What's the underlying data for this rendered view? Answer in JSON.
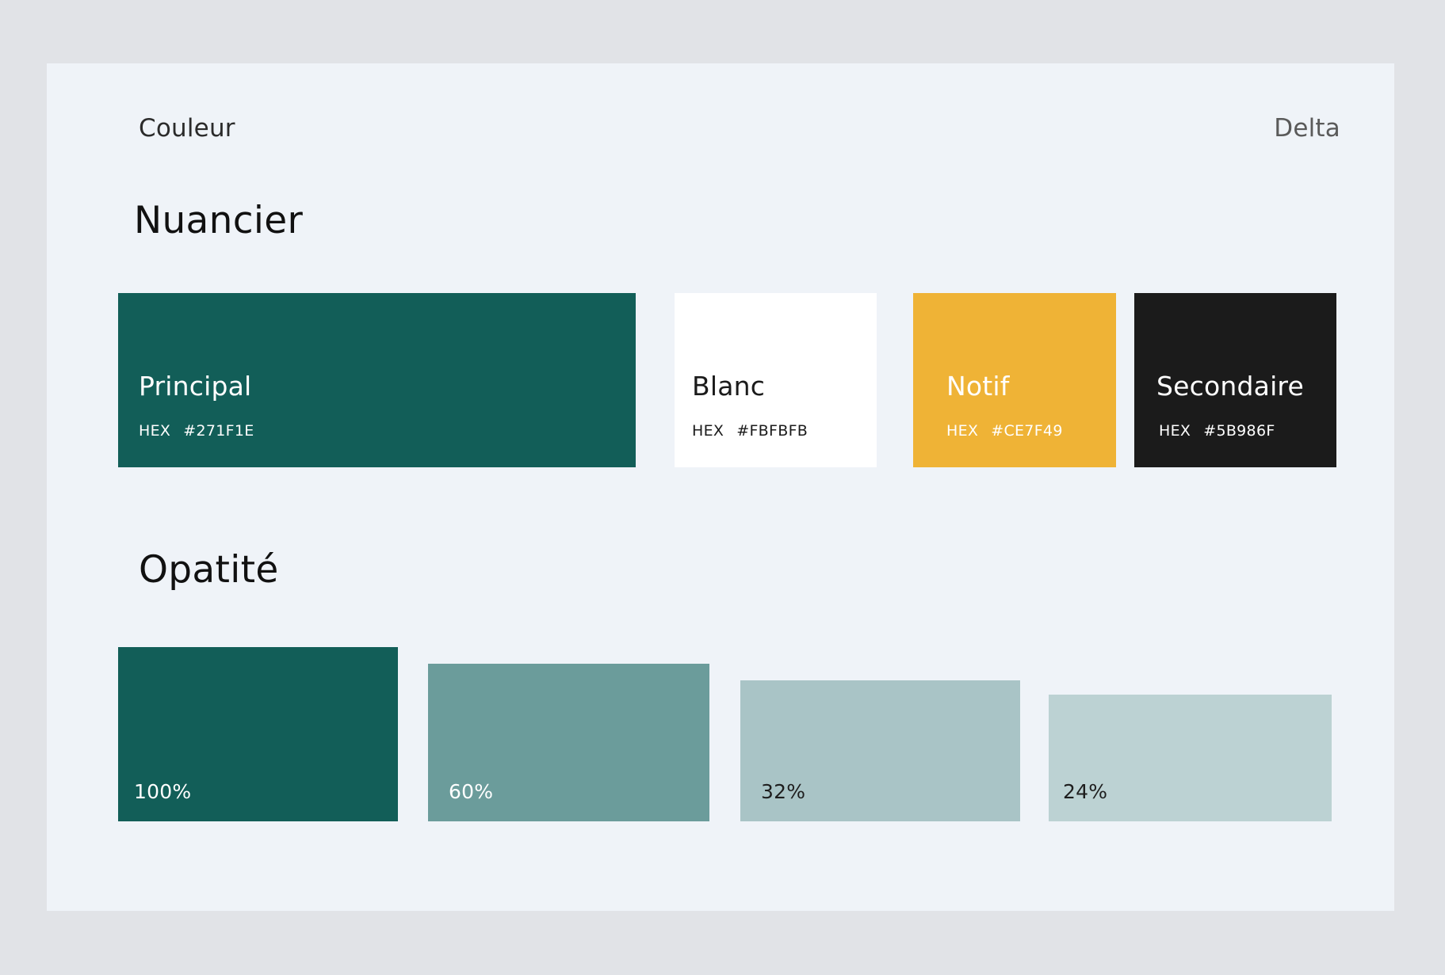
{
  "header": {
    "left": "Couleur",
    "right": "Delta"
  },
  "sections": {
    "palette_title": "Nuancier",
    "opacity_title": "Opatité"
  },
  "palette": [
    {
      "name": "Principal",
      "hex_label": "HEX",
      "hex_value": "#271F1E",
      "swatch_color": "#125e58",
      "text_color": "#ffffff"
    },
    {
      "name": "Blanc",
      "hex_label": "HEX",
      "hex_value": "#FBFBFB",
      "swatch_color": "#ffffff",
      "text_color": "#1b1b1b"
    },
    {
      "name": "Notif",
      "hex_label": "HEX",
      "hex_value": "#CE7F49",
      "swatch_color": "#efb336",
      "text_color": "#ffffff"
    },
    {
      "name": "Secondaire",
      "hex_label": "HEX",
      "hex_value": "#5B986F",
      "swatch_color": "#1b1b1b",
      "text_color": "#ffffff"
    }
  ],
  "opacity": [
    {
      "label": "100%",
      "level": 1.0,
      "swatch_color": "#125e58",
      "text_color": "#ffffff"
    },
    {
      "label": "60%",
      "level": 0.6,
      "swatch_color": "#6b9c9b",
      "text_color": "#ffffff"
    },
    {
      "label": "32%",
      "level": 0.32,
      "swatch_color": "#a9c4c6",
      "text_color": "#1e1e1e"
    },
    {
      "label": "24%",
      "level": 0.24,
      "swatch_color": "#bcd2d3",
      "text_color": "#1e1e1e"
    }
  ]
}
